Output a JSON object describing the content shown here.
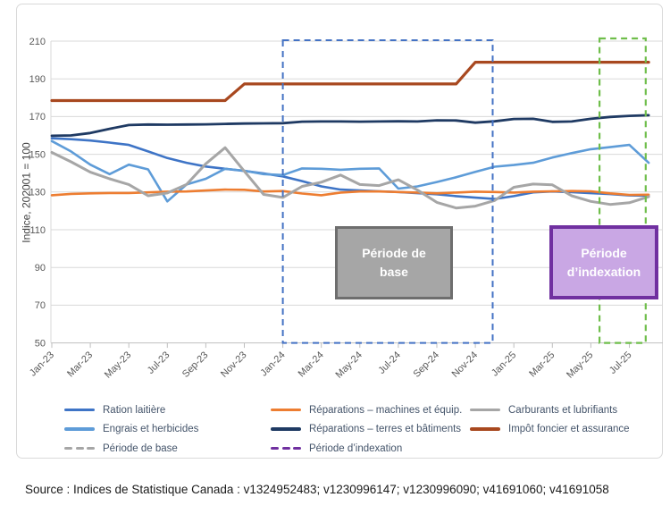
{
  "chart_data": {
    "type": "line",
    "title": "",
    "ylabel": "Indice, 202001 = 100",
    "ylim": [
      50,
      210
    ],
    "ytick_step": 20,
    "ytick_labels": [
      "210",
      "190",
      "170",
      "150",
      "130",
      "110",
      "90",
      "70",
      "50"
    ],
    "xtick_labels": [
      "Jan-23",
      "Mar-23",
      "May-23",
      "Jul-23",
      "Sep-23",
      "Nov-23",
      "Jan-24",
      "Mar-24",
      "May-24",
      "Jul-24",
      "Sep-24",
      "Nov-24",
      "Jan-25",
      "Mar-25",
      "May-25",
      "Jul-25"
    ],
    "x_categories": [
      "Jan-23",
      "Feb-23",
      "Mar-23",
      "Apr-23",
      "May-23",
      "Jun-23",
      "Jul-23",
      "Aug-23",
      "Sep-23",
      "Oct-23",
      "Nov-23",
      "Dec-23",
      "Jan-24",
      "Feb-24",
      "Mar-24",
      "Apr-24",
      "May-24",
      "Jun-24",
      "Jul-24",
      "Aug-24",
      "Sep-24",
      "Oct-24",
      "Nov-24",
      "Dec-24",
      "Jan-25",
      "Feb-25",
      "Mar-25",
      "Apr-25",
      "May-25",
      "Jun-25",
      "Jul-25",
      "Aug-25"
    ],
    "grid": "horizontal",
    "legend_position": "bottom",
    "series": [
      {
        "name": "Ration laitière",
        "color": "#3E74C6",
        "width": 2.6,
        "values": [
          158.5,
          158,
          157.3,
          156.2,
          155,
          151.5,
          148,
          145.5,
          143.5,
          142.3,
          141.2,
          139.8,
          138.3,
          135.8,
          133,
          131.3,
          130.8,
          130.4,
          130,
          129.4,
          128.8,
          127.8,
          127,
          126.3,
          127.8,
          129.8,
          130.3,
          129.9,
          129.4,
          128.9,
          128.2,
          128
        ]
      },
      {
        "name": "Engrais et herbicides",
        "color": "#5E9CD8",
        "width": 2.6,
        "values": [
          157,
          151.5,
          144.5,
          139.5,
          144.5,
          142,
          125,
          134,
          137,
          142.3,
          141.3,
          139.5,
          139,
          142.5,
          142.3,
          141.8,
          142.3,
          142.5,
          131.8,
          133,
          135.3,
          137.8,
          140.7,
          143.4,
          144.3,
          145.5,
          148.3,
          150.6,
          152.7,
          153.8,
          155,
          145.5
        ]
      },
      {
        "name": "Réparations – terres et bâtiments",
        "color": "#1F3A63",
        "width": 2.8,
        "values": [
          159.8,
          160,
          161.3,
          163.5,
          165.5,
          165.8,
          165.7,
          165.8,
          165.9,
          166.1,
          166.3,
          166.4,
          166.5,
          167.3,
          167.4,
          167.4,
          167.3,
          167.4,
          167.5,
          167.4,
          168,
          167.9,
          166.8,
          167.5,
          168.7,
          168.8,
          167.2,
          167.4,
          168.8,
          169.8,
          170.4,
          170.7
        ]
      },
      {
        "name": "Réparations – machines et équip.",
        "color": "#ED7D31",
        "width": 2.6,
        "values": [
          128.3,
          129,
          129.3,
          129.5,
          129.5,
          129.8,
          130.2,
          130.3,
          130.8,
          131.3,
          131.2,
          130.3,
          130.5,
          129.2,
          128.3,
          129.7,
          130.3,
          130.3,
          130,
          129.7,
          129.3,
          129.7,
          130.2,
          130,
          129.7,
          130.2,
          130.4,
          130.5,
          130.4,
          129.3,
          128.5,
          128.6
        ]
      },
      {
        "name": "Carburants et lubrifiants",
        "color": "#A6A6A6",
        "width": 3,
        "values": [
          151,
          146,
          140.5,
          137,
          134,
          128,
          129.5,
          134,
          145,
          153.5,
          141,
          128.7,
          127.1,
          133,
          135.2,
          139,
          134,
          133.4,
          136.5,
          131,
          124.5,
          121.5,
          122.5,
          125.5,
          132.5,
          134.2,
          133.8,
          128,
          125,
          123.4,
          124.3,
          127.5
        ]
      },
      {
        "name": "Impôt foncier et assurance",
        "color": "#A8481F",
        "width": 3.2,
        "values": [
          178.5,
          178.5,
          178.5,
          178.5,
          178.5,
          178.5,
          178.5,
          178.5,
          178.5,
          178.5,
          187.3,
          187.3,
          187.3,
          187.3,
          187.3,
          187.3,
          187.3,
          187.3,
          187.3,
          187.3,
          187.3,
          187.3,
          198.8,
          198.8,
          198.8,
          198.8,
          198.8,
          198.8,
          198.8,
          198.8,
          198.8,
          198.8
        ]
      }
    ],
    "annotations": {
      "base_period_box": {
        "from_month": "Jan-24",
        "to_month": "Dec-24",
        "x1_month_index": 12,
        "x2_month_index": 22.9,
        "color": "#4472C4"
      },
      "indexation_period_box": {
        "from_month": "Jun-25",
        "to_month": "Aug-25",
        "x1_month_index": 28.45,
        "x2_month_index": 30.85,
        "color": "#6FBE4B"
      },
      "base_period_label": {
        "line1": "Période de",
        "line2": "base",
        "fill": "#A6A6A6",
        "border": "#6E6E6E",
        "text_color": "#FFFFFF"
      },
      "indexation_period_label": {
        "line1": "Période",
        "line2": "d’indexation",
        "fill": "#C9A7E4",
        "border": "#7030A0",
        "text_color": "#FFFFFF"
      }
    }
  },
  "legend": {
    "text_color": "#44546A",
    "columns": [
      {
        "items": [
          {
            "label": "Ration laitière",
            "color": "#3E74C6",
            "dash": false
          },
          {
            "label": "Engrais et herbicides",
            "color": "#5E9CD8",
            "dash": false
          },
          {
            "label": "Période de base",
            "color": "#A6A6A6",
            "dash": true
          }
        ]
      },
      {
        "items": [
          {
            "label": "Réparations – machines et équip.",
            "color": "#ED7D31",
            "dash": false
          },
          {
            "label": "Réparations – terres et bâtiments",
            "color": "#1F3A63",
            "dash": false
          },
          {
            "label": "Période d’indexation",
            "color": "#7030A0",
            "dash": true
          }
        ]
      },
      {
        "items": [
          {
            "label": "Carburants et lubrifiants",
            "color": "#A6A6A6",
            "dash": false
          },
          {
            "label": "Impôt foncier et assurance",
            "color": "#A8481F",
            "dash": false
          }
        ]
      }
    ]
  },
  "axis_colors": {
    "gridline": "#D9D9D9",
    "axis_line": "#BFBFBF",
    "tick_label": "#595959"
  },
  "source_text": "Source : Indices de Statistique Canada : v1324952483; v1230996147; v1230996090; v41691060; v41691058"
}
